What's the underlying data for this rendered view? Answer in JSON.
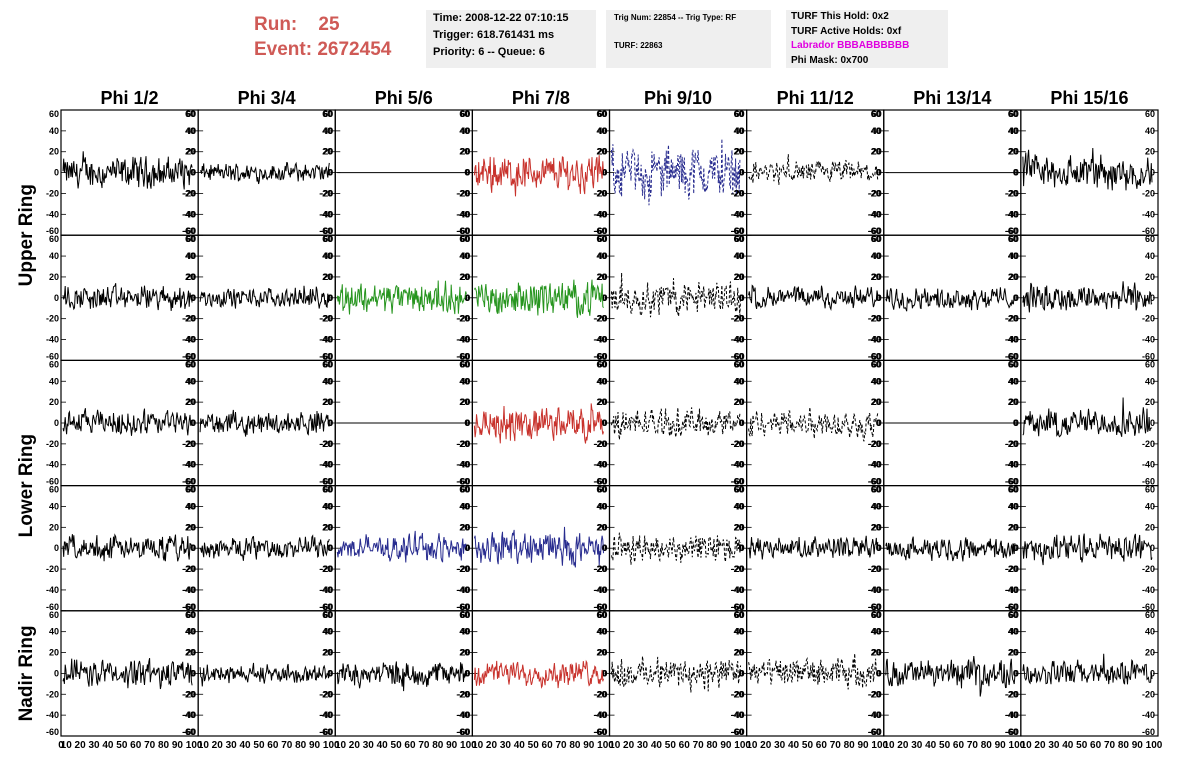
{
  "header": {
    "run_label": "Run:",
    "run_value": "25",
    "event_label": "Event:",
    "event_value": "2672454",
    "time": "Time: 2008-12-22 07:10:15",
    "trigger": "Trigger: 618.761431 ms",
    "priority": "Priority: 6 -- Queue: 6",
    "trig_num": "Trig Num: 22854 -- Trig Type: RF",
    "turf": "TURF: 22863",
    "turf_this_hold": "TURF This Hold: 0x2",
    "turf_active_holds": "TURF Active Holds: 0xf",
    "labrador": "Labrador BBBABBBBBB",
    "phi_mask": "Phi Mask: 0x700"
  },
  "colors": {
    "header_red": "#cf5a56",
    "trace_black": "#000000",
    "trace_red": "#c8322c",
    "trace_green": "#27951f",
    "trace_blue": "#282c8f",
    "labrador_magenta": "#e000e0"
  },
  "chart_data": {
    "type": "line",
    "columns": [
      "Phi 1/2",
      "Phi 3/4",
      "Phi 5/6",
      "Phi 7/8",
      "Phi 9/10",
      "Phi 11/12",
      "Phi 13/14",
      "Phi 15/16"
    ],
    "rows": [
      "Upper Ring",
      "Lower Ring",
      "Nadir Ring"
    ],
    "ylim": [
      -60,
      60
    ],
    "xlim": [
      0,
      100
    ],
    "y_ticks": [
      "60",
      "40",
      "20",
      "0",
      "-20",
      "-40",
      "-60"
    ],
    "x_tick_labels": "10 20 30 40 50 60 70 80 90 100",
    "panels": [
      [
        {
          "style": "solid",
          "color": "black",
          "amp": 20
        },
        {
          "style": "solid",
          "color": "black",
          "amp": 12
        },
        {
          "style": "flat",
          "color": "black",
          "amp": 0
        },
        {
          "style": "solid",
          "color": "red",
          "amp": 24
        },
        {
          "style": "dashed",
          "color": "blue",
          "amp": 34
        },
        {
          "style": "dashed",
          "color": "black",
          "amp": 15
        },
        {
          "style": "flat",
          "color": "black",
          "amp": 0
        },
        {
          "style": "solid",
          "color": "black",
          "amp": 24
        }
      ],
      [
        {
          "style": "solid",
          "color": "black",
          "amp": 16
        },
        {
          "style": "solid",
          "color": "black",
          "amp": 12
        },
        {
          "style": "solid",
          "color": "green",
          "amp": 20
        },
        {
          "style": "solid",
          "color": "green",
          "amp": 22
        },
        {
          "style": "dashed",
          "color": "black",
          "amp": 22
        },
        {
          "style": "solid",
          "color": "black",
          "amp": 14
        },
        {
          "style": "solid",
          "color": "black",
          "amp": 14
        },
        {
          "style": "solid",
          "color": "black",
          "amp": 18
        }
      ],
      [
        {
          "style": "solid",
          "color": "black",
          "amp": 16
        },
        {
          "style": "solid",
          "color": "black",
          "amp": 14
        },
        {
          "style": "flat",
          "color": "black",
          "amp": 0
        },
        {
          "style": "solid",
          "color": "red",
          "amp": 22
        },
        {
          "style": "dashed",
          "color": "black",
          "amp": 18
        },
        {
          "style": "dashed",
          "color": "black",
          "amp": 18
        },
        {
          "style": "flat",
          "color": "black",
          "amp": 0
        },
        {
          "style": "solid",
          "color": "black",
          "amp": 18
        }
      ],
      [
        {
          "style": "solid",
          "color": "black",
          "amp": 16
        },
        {
          "style": "solid",
          "color": "black",
          "amp": 14
        },
        {
          "style": "solid",
          "color": "blue",
          "amp": 16
        },
        {
          "style": "solid",
          "color": "blue",
          "amp": 22
        },
        {
          "style": "dashed",
          "color": "black",
          "amp": 18
        },
        {
          "style": "solid",
          "color": "black",
          "amp": 14
        },
        {
          "style": "solid",
          "color": "black",
          "amp": 14
        },
        {
          "style": "solid",
          "color": "black",
          "amp": 18
        }
      ],
      [
        {
          "style": "solid",
          "color": "black",
          "amp": 18
        },
        {
          "style": "solid",
          "color": "black",
          "amp": 12
        },
        {
          "style": "solid",
          "color": "black",
          "amp": 16
        },
        {
          "style": "solid",
          "color": "red",
          "amp": 16
        },
        {
          "style": "dashed",
          "color": "black",
          "amp": 20
        },
        {
          "style": "dashed",
          "color": "black",
          "amp": 18
        },
        {
          "style": "solid",
          "color": "black",
          "amp": 18
        },
        {
          "style": "solid",
          "color": "black",
          "amp": 16
        }
      ]
    ]
  }
}
